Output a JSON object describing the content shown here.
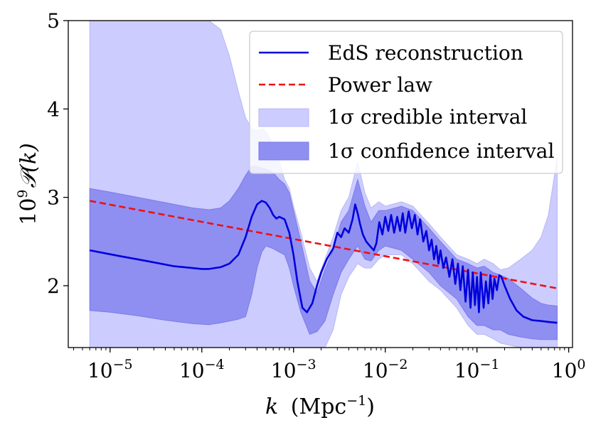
{
  "chart_data": {
    "type": "line",
    "xscale": "log",
    "xlim": [
      3.5e-06,
      1.1
    ],
    "ylim": [
      1.3,
      5.0
    ],
    "xlabel": {
      "var": "k",
      "unit": "(Mpc",
      "exp": "−1",
      "close": ")"
    },
    "ylabel": {
      "coef": "10",
      "exp": "9",
      "sym": "𝒫(k)"
    },
    "xticks": [
      {
        "value": 1e-05,
        "base": "10",
        "exp": "−5"
      },
      {
        "value": 0.0001,
        "base": "10",
        "exp": "−4"
      },
      {
        "value": 0.001,
        "base": "10",
        "exp": "−3"
      },
      {
        "value": 0.01,
        "base": "10",
        "exp": "−2"
      },
      {
        "value": 0.1,
        "base": "10",
        "exp": "−1"
      },
      {
        "value": 1,
        "base": "10",
        "exp": "0"
      }
    ],
    "yticks": [
      {
        "value": 2,
        "label": "2"
      },
      {
        "value": 3,
        "label": "3"
      },
      {
        "value": 4,
        "label": "4"
      },
      {
        "value": 5,
        "label": "5"
      }
    ],
    "legend": {
      "position": "top-right",
      "entries": [
        {
          "label": "EdS reconstruction",
          "kind": "line",
          "color": "#0000dd"
        },
        {
          "label": "Power law",
          "kind": "dashed",
          "color": "#ee1111"
        },
        {
          "label": "1σ credible interval",
          "kind": "patch",
          "color": "#ccccff"
        },
        {
          "label": "1σ confidence interval",
          "kind": "patch",
          "color": "#8f8ff2"
        }
      ]
    },
    "series": [
      {
        "name": "EdS reconstruction",
        "color": "#0000dd",
        "x": [
          6e-06,
          1.2e-05,
          2.5e-05,
          5e-05,
          0.0001,
          0.00012,
          0.00016,
          0.0002,
          0.00025,
          0.0003,
          0.00035,
          0.0004,
          0.00045,
          0.0005,
          0.00055,
          0.0006,
          0.00065,
          0.0007,
          0.0008,
          0.0009,
          0.001,
          0.0011,
          0.00125,
          0.0014,
          0.0016,
          0.0018,
          0.002,
          0.0023,
          0.0027,
          0.003,
          0.0033,
          0.0036,
          0.004,
          0.0044,
          0.0047,
          0.005,
          0.0053,
          0.0057,
          0.0062,
          0.0068,
          0.0075,
          0.008,
          0.0086,
          0.0093,
          0.01,
          0.0108,
          0.0116,
          0.0125,
          0.0135,
          0.0145,
          0.0155,
          0.0165,
          0.018,
          0.0195,
          0.021,
          0.0225,
          0.024,
          0.026,
          0.028,
          0.03,
          0.032,
          0.034,
          0.036,
          0.038,
          0.04,
          0.043,
          0.046,
          0.05,
          0.054,
          0.058,
          0.062,
          0.066,
          0.07,
          0.075,
          0.08,
          0.085,
          0.09,
          0.095,
          0.1,
          0.105,
          0.11,
          0.118,
          0.125,
          0.133,
          0.14,
          0.148,
          0.155,
          0.165,
          0.175,
          0.185,
          0.2,
          0.23,
          0.27,
          0.32,
          0.4,
          0.5,
          0.6,
          0.75
        ],
        "y": [
          2.4,
          2.34,
          2.28,
          2.22,
          2.19,
          2.19,
          2.21,
          2.25,
          2.35,
          2.55,
          2.78,
          2.92,
          2.96,
          2.94,
          2.88,
          2.8,
          2.76,
          2.78,
          2.75,
          2.6,
          2.35,
          2.05,
          1.75,
          1.7,
          1.8,
          2.0,
          2.15,
          2.3,
          2.42,
          2.6,
          2.55,
          2.65,
          2.6,
          2.75,
          2.92,
          2.82,
          2.7,
          2.58,
          2.5,
          2.45,
          2.4,
          2.48,
          2.72,
          2.58,
          2.78,
          2.62,
          2.8,
          2.6,
          2.78,
          2.62,
          2.82,
          2.6,
          2.84,
          2.65,
          2.8,
          2.58,
          2.75,
          2.5,
          2.62,
          2.4,
          2.52,
          2.3,
          2.45,
          2.25,
          2.4,
          2.2,
          2.32,
          2.1,
          2.3,
          2.02,
          2.25,
          1.95,
          2.22,
          1.82,
          2.18,
          1.75,
          2.15,
          1.78,
          2.1,
          1.7,
          2.15,
          1.75,
          2.05,
          1.8,
          2.12,
          1.85,
          2.08,
          1.95,
          2.12,
          2.1,
          2.0,
          1.85,
          1.72,
          1.65,
          1.61,
          1.6,
          1.59,
          1.58
        ]
      },
      {
        "name": "Power law",
        "color": "#ee1111",
        "dashed": true,
        "x": [
          6e-06,
          0.75
        ],
        "y": [
          2.96,
          1.97
        ]
      }
    ],
    "bands": [
      {
        "name": "1σ credible interval",
        "color": "#ccccff",
        "x": [
          6e-06,
          1e-05,
          2e-05,
          4e-05,
          8e-05,
          0.00012,
          0.00016,
          0.0002,
          0.00025,
          0.0003,
          0.00035,
          0.0004,
          0.00045,
          0.0005,
          0.0006,
          0.0007,
          0.0008,
          0.0009,
          0.001,
          0.0012,
          0.0015,
          0.0018,
          0.0022,
          0.0027,
          0.0033,
          0.004,
          0.005,
          0.006,
          0.007,
          0.0085,
          0.01,
          0.015,
          0.02,
          0.03,
          0.04,
          0.06,
          0.08,
          0.1,
          0.12,
          0.15,
          0.18,
          0.22,
          0.3,
          0.4,
          0.5,
          0.6,
          0.75
        ],
        "upper": [
          5.0,
          5.0,
          5.0,
          5.0,
          5.0,
          5.0,
          4.9,
          4.6,
          4.2,
          3.9,
          3.78,
          3.76,
          3.78,
          3.75,
          3.6,
          3.4,
          3.2,
          3.1,
          2.9,
          2.6,
          2.2,
          2.05,
          2.3,
          2.55,
          2.85,
          3.0,
          3.4,
          3.05,
          2.88,
          2.95,
          2.9,
          2.95,
          2.9,
          2.7,
          2.55,
          2.35,
          2.3,
          2.25,
          2.3,
          2.25,
          2.18,
          2.2,
          2.3,
          2.4,
          2.55,
          2.8,
          3.45
        ],
        "lower": [
          1.3,
          1.3,
          1.3,
          1.3,
          1.3,
          1.3,
          1.3,
          1.3,
          1.3,
          1.3,
          1.3,
          1.3,
          1.3,
          1.3,
          1.3,
          1.3,
          1.3,
          1.3,
          1.3,
          1.3,
          1.3,
          1.3,
          1.3,
          1.5,
          1.9,
          2.1,
          2.25,
          2.2,
          2.2,
          2.3,
          2.35,
          2.35,
          2.25,
          2.05,
          1.95,
          1.75,
          1.55,
          1.45,
          1.45,
          1.4,
          1.35,
          1.33,
          1.3,
          1.3,
          1.3,
          1.3,
          1.3
        ]
      },
      {
        "name": "1σ confidence interval",
        "color": "#8f8ff2",
        "x": [
          6e-06,
          1e-05,
          2e-05,
          4e-05,
          8e-05,
          0.00012,
          0.00016,
          0.0002,
          0.00025,
          0.0003,
          0.00035,
          0.0004,
          0.00045,
          0.0005,
          0.0006,
          0.0007,
          0.0008,
          0.0009,
          0.001,
          0.0012,
          0.0015,
          0.0018,
          0.0022,
          0.0027,
          0.0033,
          0.004,
          0.005,
          0.006,
          0.007,
          0.0085,
          0.01,
          0.015,
          0.02,
          0.03,
          0.04,
          0.06,
          0.08,
          0.1,
          0.12,
          0.15,
          0.18,
          0.22,
          0.3,
          0.4,
          0.5,
          0.6,
          0.75
        ],
        "upper": [
          3.1,
          3.06,
          3.0,
          2.94,
          2.88,
          2.86,
          2.88,
          2.96,
          3.1,
          3.25,
          3.35,
          3.35,
          3.33,
          3.32,
          3.28,
          3.2,
          3.15,
          3.05,
          2.85,
          2.5,
          2.05,
          1.92,
          2.18,
          2.4,
          2.72,
          2.85,
          3.2,
          2.9,
          2.72,
          2.85,
          2.85,
          2.9,
          2.85,
          2.65,
          2.5,
          2.3,
          2.25,
          2.2,
          2.22,
          2.15,
          2.12,
          2.08,
          1.97,
          1.86,
          1.8,
          1.78,
          1.77
        ],
        "lower": [
          1.72,
          1.7,
          1.66,
          1.61,
          1.57,
          1.56,
          1.58,
          1.6,
          1.62,
          1.65,
          1.9,
          2.2,
          2.38,
          2.45,
          2.42,
          2.38,
          2.35,
          2.2,
          2.0,
          1.7,
          1.45,
          1.48,
          1.6,
          1.9,
          2.15,
          2.3,
          2.45,
          2.3,
          2.28,
          2.4,
          2.45,
          2.4,
          2.3,
          2.15,
          2.0,
          1.85,
          1.65,
          1.55,
          1.55,
          1.5,
          1.5,
          1.45,
          1.42,
          1.4,
          1.39,
          1.39,
          1.39
        ]
      }
    ]
  }
}
